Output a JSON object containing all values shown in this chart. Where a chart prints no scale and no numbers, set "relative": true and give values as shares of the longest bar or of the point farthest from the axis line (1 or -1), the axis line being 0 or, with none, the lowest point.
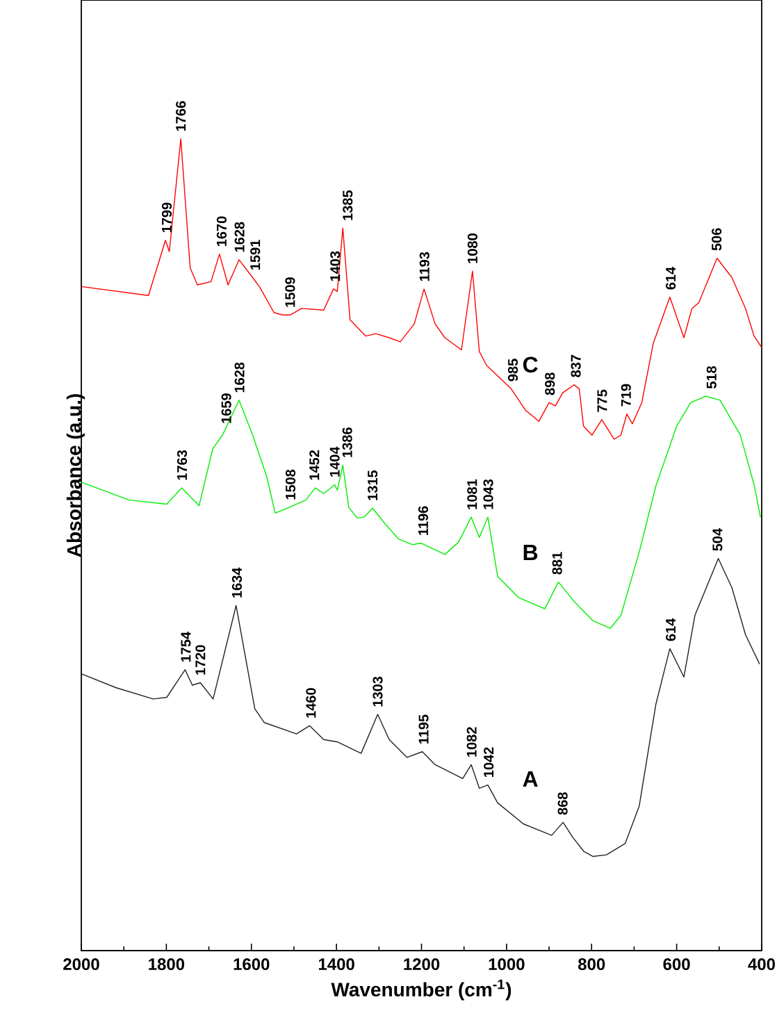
{
  "chart_data": {
    "type": "line",
    "relative": true,
    "xlabel": "Wavenumber (cm$^{-1}$)",
    "ylabel": "Absorbance (a.u.)",
    "xlim": [
      2000,
      400
    ],
    "xticks": [
      2000,
      1800,
      1600,
      1400,
      1200,
      1000,
      800,
      600,
      400
    ],
    "tick_labels": "x",
    "series": [
      {
        "name": "C",
        "color": "#ff0000",
        "x": [
          2000,
          1842,
          1802,
          1793,
          1766,
          1744,
          1727,
          1695,
          1675,
          1655,
          1629,
          1597,
          1580,
          1547,
          1527,
          1509,
          1482,
          1430,
          1407,
          1398,
          1385,
          1368,
          1331,
          1308,
          1276,
          1250,
          1217,
          1194,
          1168,
          1145,
          1106,
          1080,
          1064,
          1047,
          989,
          956,
          924,
          900,
          885,
          868,
          841,
          829,
          819,
          799,
          776,
          747,
          731,
          717,
          704,
          682,
          655,
          616,
          583,
          564,
          548,
          505,
          470,
          438,
          418,
          400
        ],
        "values": [
          0.818,
          0.807,
          0.875,
          0.861,
          1.0,
          0.841,
          0.82,
          0.824,
          0.858,
          0.82,
          0.851,
          0.829,
          0.817,
          0.786,
          0.783,
          0.783,
          0.791,
          0.789,
          0.815,
          0.812,
          0.89,
          0.777,
          0.757,
          0.76,
          0.755,
          0.75,
          0.772,
          0.815,
          0.772,
          0.755,
          0.74,
          0.837,
          0.738,
          0.721,
          0.692,
          0.666,
          0.652,
          0.675,
          0.671,
          0.687,
          0.697,
          0.692,
          0.646,
          0.635,
          0.654,
          0.63,
          0.635,
          0.661,
          0.649,
          0.675,
          0.748,
          0.805,
          0.755,
          0.791,
          0.798,
          0.853,
          0.829,
          0.791,
          0.757,
          0.743
        ]
      },
      {
        "name": "B",
        "color": "#00ee00",
        "x": [
          2000,
          1887,
          1799,
          1764,
          1723,
          1691,
          1668,
          1629,
          1597,
          1564,
          1544,
          1511,
          1472,
          1450,
          1430,
          1404,
          1398,
          1385,
          1371,
          1351,
          1335,
          1315,
          1286,
          1254,
          1221,
          1201,
          1145,
          1113,
          1083,
          1064,
          1044,
          1021,
          972,
          910,
          878,
          841,
          796,
          756,
          731,
          688,
          649,
          600,
          567,
          531,
          498,
          450,
          417,
          403
        ],
        "values": [
          0.577,
          0.555,
          0.55,
          0.57,
          0.548,
          0.618,
          0.635,
          0.678,
          0.635,
          0.584,
          0.539,
          0.546,
          0.555,
          0.57,
          0.563,
          0.574,
          0.567,
          0.598,
          0.546,
          0.533,
          0.534,
          0.545,
          0.526,
          0.507,
          0.5,
          0.502,
          0.488,
          0.503,
          0.534,
          0.509,
          0.534,
          0.461,
          0.435,
          0.421,
          0.454,
          0.43,
          0.406,
          0.397,
          0.413,
          0.491,
          0.572,
          0.646,
          0.675,
          0.683,
          0.678,
          0.635,
          0.572,
          0.534
        ]
      },
      {
        "name": "A",
        "color": "#222222",
        "x": [
          2000,
          1919,
          1831,
          1799,
          1756,
          1739,
          1720,
          1690,
          1636,
          1592,
          1570,
          1494,
          1463,
          1430,
          1397,
          1342,
          1303,
          1276,
          1234,
          1198,
          1168,
          1103,
          1083,
          1064,
          1044,
          1021,
          960,
          894,
          867,
          845,
          818,
          797,
          765,
          721,
          688,
          649,
          616,
          583,
          557,
          502,
          470,
          438,
          405
        ],
        "values": [
          0.341,
          0.324,
          0.31,
          0.312,
          0.346,
          0.327,
          0.33,
          0.31,
          0.425,
          0.298,
          0.281,
          0.267,
          0.277,
          0.26,
          0.257,
          0.243,
          0.291,
          0.26,
          0.238,
          0.245,
          0.229,
          0.212,
          0.229,
          0.2,
          0.204,
          0.182,
          0.156,
          0.142,
          0.158,
          0.14,
          0.122,
          0.116,
          0.118,
          0.132,
          0.178,
          0.303,
          0.372,
          0.337,
          0.413,
          0.483,
          0.447,
          0.389,
          0.353
        ]
      }
    ],
    "annotations": [
      {
        "text": "1799",
        "x": 1799,
        "y": 0.875
      },
      {
        "text": "1766",
        "x": 1766,
        "y": 1.0
      },
      {
        "text": "1670",
        "x": 1670,
        "y": 0.858
      },
      {
        "text": "1628",
        "x": 1628,
        "y": 0.851
      },
      {
        "text": "1591",
        "x": 1591,
        "y": 0.829
      },
      {
        "text": "1509",
        "x": 1509,
        "y": 0.783
      },
      {
        "text": "1403",
        "x": 1403,
        "y": 0.815
      },
      {
        "text": "1385",
        "x": 1385,
        "y": 0.89
      },
      {
        "text": "1193",
        "x": 1193,
        "y": 0.815
      },
      {
        "text": "1080",
        "x": 1080,
        "y": 0.837
      },
      {
        "text": "985",
        "x": 985,
        "y": 0.692
      },
      {
        "text": "898",
        "x": 898,
        "y": 0.675
      },
      {
        "text": "837",
        "x": 837,
        "y": 0.697
      },
      {
        "text": "775",
        "x": 775,
        "y": 0.654
      },
      {
        "text": "719",
        "x": 719,
        "y": 0.661
      },
      {
        "text": "614",
        "x": 614,
        "y": 0.805
      },
      {
        "text": "506",
        "x": 506,
        "y": 0.853
      },
      {
        "text": "1763",
        "x": 1763,
        "y": 0.57
      },
      {
        "text": "1659",
        "x": 1659,
        "y": 0.64
      },
      {
        "text": "1628",
        "x": 1628,
        "y": 0.678
      },
      {
        "text": "1508",
        "x": 1508,
        "y": 0.546
      },
      {
        "text": "1452",
        "x": 1452,
        "y": 0.57
      },
      {
        "text": "1404",
        "x": 1404,
        "y": 0.574
      },
      {
        "text": "1386",
        "x": 1386,
        "y": 0.598
      },
      {
        "text": "1315",
        "x": 1315,
        "y": 0.545
      },
      {
        "text": "1196",
        "x": 1196,
        "y": 0.502
      },
      {
        "text": "1081",
        "x": 1081,
        "y": 0.534
      },
      {
        "text": "1043",
        "x": 1043,
        "y": 0.534
      },
      {
        "text": "881",
        "x": 881,
        "y": 0.454
      },
      {
        "text": "518",
        "x": 518,
        "y": 0.683
      },
      {
        "text": "1754",
        "x": 1754,
        "y": 0.346
      },
      {
        "text": "1720",
        "x": 1720,
        "y": 0.33
      },
      {
        "text": "1634",
        "x": 1634,
        "y": 0.425
      },
      {
        "text": "1460",
        "x": 1460,
        "y": 0.277
      },
      {
        "text": "1303",
        "x": 1303,
        "y": 0.291
      },
      {
        "text": "1195",
        "x": 1195,
        "y": 0.245
      },
      {
        "text": "1082",
        "x": 1082,
        "y": 0.229
      },
      {
        "text": "1042",
        "x": 1042,
        "y": 0.204
      },
      {
        "text": "868",
        "x": 868,
        "y": 0.158
      },
      {
        "text": "614",
        "x": 614,
        "y": 0.372
      },
      {
        "text": "504",
        "x": 504,
        "y": 0.483
      }
    ]
  }
}
